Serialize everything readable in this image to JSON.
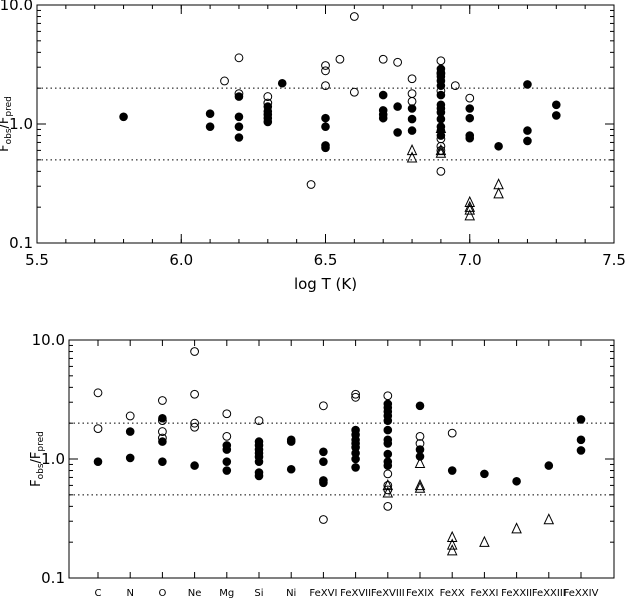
{
  "chart_data": [
    {
      "type": "scatter",
      "xlabel": "log T (K)",
      "ylabel": {
        "main": "F",
        "sub1": "obs",
        "sep": "/F",
        "sub2": "pred"
      },
      "xlim": [
        5.5,
        7.5
      ],
      "ylim": [
        0.1,
        10.0
      ],
      "y_scale": "log",
      "x_ticks": [
        "5.5",
        "6.0",
        "6.5",
        "7.0",
        "7.5"
      ],
      "y_ticks": [
        "0.1",
        "1.0",
        "10.0"
      ],
      "reference_lines": [
        2.0,
        0.5
      ],
      "series": [
        {
          "marker": "filled-circle",
          "points": [
            [
              5.8,
              1.15
            ],
            [
              6.1,
              1.22
            ],
            [
              6.1,
              0.95
            ],
            [
              6.2,
              1.7
            ],
            [
              6.2,
              1.15
            ],
            [
              6.2,
              0.95
            ],
            [
              6.2,
              0.77
            ],
            [
              6.3,
              1.4
            ],
            [
              6.3,
              1.28
            ],
            [
              6.3,
              1.2
            ],
            [
              6.3,
              1.12
            ],
            [
              6.3,
              1.04
            ],
            [
              6.35,
              2.2
            ],
            [
              6.5,
              1.12
            ],
            [
              6.5,
              0.95
            ],
            [
              6.5,
              0.66
            ],
            [
              6.5,
              0.63
            ],
            [
              6.7,
              1.75
            ],
            [
              6.7,
              1.3
            ],
            [
              6.7,
              1.2
            ],
            [
              6.7,
              1.12
            ],
            [
              6.75,
              1.4
            ],
            [
              6.75,
              0.85
            ],
            [
              6.8,
              1.35
            ],
            [
              6.8,
              1.1
            ],
            [
              6.8,
              0.88
            ],
            [
              6.9,
              2.9
            ],
            [
              6.9,
              2.7
            ],
            [
              6.9,
              2.5
            ],
            [
              6.9,
              2.3
            ],
            [
              6.9,
              2.1
            ],
            [
              6.9,
              1.75
            ],
            [
              6.9,
              1.45
            ],
            [
              6.9,
              1.35
            ],
            [
              6.9,
              1.25
            ],
            [
              6.9,
              1.1
            ],
            [
              6.9,
              0.95
            ],
            [
              6.9,
              0.88
            ],
            [
              6.9,
              0.8
            ],
            [
              7.0,
              1.35
            ],
            [
              7.0,
              1.12
            ],
            [
              7.0,
              0.8
            ],
            [
              7.0,
              0.76
            ],
            [
              7.1,
              0.65
            ],
            [
              7.2,
              2.15
            ],
            [
              7.2,
              0.88
            ],
            [
              7.2,
              0.72
            ],
            [
              7.3,
              1.45
            ],
            [
              7.3,
              1.18
            ]
          ]
        },
        {
          "marker": "open-circle",
          "points": [
            [
              6.15,
              2.3
            ],
            [
              6.2,
              3.6
            ],
            [
              6.2,
              1.8
            ],
            [
              6.3,
              1.7
            ],
            [
              6.3,
              1.5
            ],
            [
              6.45,
              0.31
            ],
            [
              6.5,
              3.1
            ],
            [
              6.5,
              2.8
            ],
            [
              6.5,
              2.1
            ],
            [
              6.55,
              3.5
            ],
            [
              6.6,
              8.0
            ],
            [
              6.6,
              1.85
            ],
            [
              6.7,
              3.5
            ],
            [
              6.75,
              3.3
            ],
            [
              6.8,
              2.4
            ],
            [
              6.8,
              1.8
            ],
            [
              6.8,
              1.55
            ],
            [
              6.9,
              3.4
            ],
            [
              6.9,
              2.65
            ],
            [
              6.9,
              1.9
            ],
            [
              6.9,
              0.75
            ],
            [
              6.9,
              0.65
            ],
            [
              6.9,
              0.6
            ],
            [
              6.9,
              0.4
            ],
            [
              6.95,
              2.1
            ],
            [
              7.0,
              1.65
            ]
          ]
        },
        {
          "marker": "open-triangle",
          "points": [
            [
              6.8,
              0.6
            ],
            [
              6.8,
              0.52
            ],
            [
              6.9,
              0.92
            ],
            [
              6.9,
              0.6
            ],
            [
              6.9,
              0.57
            ],
            [
              7.0,
              0.22
            ],
            [
              7.0,
              0.2
            ],
            [
              7.0,
              0.19
            ],
            [
              7.0,
              0.17
            ],
            [
              7.1,
              0.31
            ],
            [
              7.1,
              0.26
            ]
          ]
        }
      ]
    },
    {
      "type": "scatter",
      "xlabel": "",
      "ylabel": {
        "main": "F",
        "sub1": "obs",
        "sep": "/F",
        "sub2": "pred"
      },
      "ylim": [
        0.1,
        10.0
      ],
      "y_scale": "log",
      "y_ticks": [
        "0.1",
        "1.0",
        "10.0"
      ],
      "reference_lines": [
        2.0,
        0.5
      ],
      "categories": [
        "C",
        "N",
        "O",
        "Ne",
        "Mg",
        "Si",
        "Ni",
        "FeXVI",
        "FeXVII",
        "FeXVIII",
        "FeXIX",
        "FeXX",
        "FeXXI",
        "FeXXII",
        "FeXXIII",
        "FeXXIV"
      ],
      "series": [
        {
          "marker": "filled-circle",
          "points": [
            [
              "C",
              0.95
            ],
            [
              "N",
              1.7
            ],
            [
              "N",
              1.02
            ],
            [
              "O",
              2.2
            ],
            [
              "O",
              1.4
            ],
            [
              "O",
              0.95
            ],
            [
              "Ne",
              0.88
            ],
            [
              "Mg",
              1.3
            ],
            [
              "Mg",
              1.2
            ],
            [
              "Mg",
              0.95
            ],
            [
              "Mg",
              0.8
            ],
            [
              "Si",
              1.4
            ],
            [
              "Si",
              1.3
            ],
            [
              "Si",
              1.2
            ],
            [
              "Si",
              1.12
            ],
            [
              "Si",
              1.04
            ],
            [
              "Si",
              0.95
            ],
            [
              "Si",
              0.77
            ],
            [
              "Si",
              0.72
            ],
            [
              "Ni",
              1.45
            ],
            [
              "Ni",
              1.4
            ],
            [
              "Ni",
              0.82
            ],
            [
              "FeXVI",
              1.15
            ],
            [
              "FeXVI",
              0.95
            ],
            [
              "FeXVI",
              0.66
            ],
            [
              "FeXVI",
              0.63
            ],
            [
              "FeXVII",
              1.75
            ],
            [
              "FeXVII",
              1.6
            ],
            [
              "FeXVII",
              1.45
            ],
            [
              "FeXVII",
              1.35
            ],
            [
              "FeXVII",
              1.25
            ],
            [
              "FeXVII",
              1.12
            ],
            [
              "FeXVII",
              1.0
            ],
            [
              "FeXVII",
              0.85
            ],
            [
              "FeXVIII",
              2.9
            ],
            [
              "FeXVIII",
              2.7
            ],
            [
              "FeXVIII",
              2.5
            ],
            [
              "FeXVIII",
              2.3
            ],
            [
              "FeXVIII",
              2.1
            ],
            [
              "FeXVIII",
              1.75
            ],
            [
              "FeXVIII",
              1.45
            ],
            [
              "FeXVIII",
              1.35
            ],
            [
              "FeXVIII",
              1.1
            ],
            [
              "FeXVIII",
              0.95
            ],
            [
              "FeXVIII",
              0.88
            ],
            [
              "FeXIX",
              2.8
            ],
            [
              "FeXIX",
              1.2
            ],
            [
              "FeXIX",
              1.05
            ],
            [
              "FeXX",
              0.8
            ],
            [
              "FeXXI",
              0.75
            ],
            [
              "FeXXII",
              0.65
            ],
            [
              "FeXXIII",
              0.88
            ],
            [
              "FeXXIV",
              2.15
            ],
            [
              "FeXXIV",
              1.45
            ],
            [
              "FeXXIV",
              1.18
            ]
          ]
        },
        {
          "marker": "open-circle",
          "points": [
            [
              "C",
              3.6
            ],
            [
              "C",
              1.8
            ],
            [
              "N",
              2.3
            ],
            [
              "O",
              3.1
            ],
            [
              "O",
              2.1
            ],
            [
              "O",
              1.7
            ],
            [
              "O",
              1.5
            ],
            [
              "Ne",
              8.0
            ],
            [
              "Ne",
              3.5
            ],
            [
              "Ne",
              2.0
            ],
            [
              "Ne",
              1.85
            ],
            [
              "Mg",
              2.4
            ],
            [
              "Mg",
              1.55
            ],
            [
              "Si",
              2.1
            ],
            [
              "FeXVI",
              2.8
            ],
            [
              "FeXVI",
              0.31
            ],
            [
              "FeXVII",
              3.5
            ],
            [
              "FeXVII",
              3.3
            ],
            [
              "FeXVIII",
              3.4
            ],
            [
              "FeXVIII",
              0.75
            ],
            [
              "FeXVIII",
              0.6
            ],
            [
              "FeXVIII",
              0.55
            ],
            [
              "FeXVIII",
              0.4
            ],
            [
              "FeXIX",
              1.55
            ],
            [
              "FeXIX",
              1.35
            ],
            [
              "FeXX",
              1.65
            ]
          ]
        },
        {
          "marker": "open-triangle",
          "points": [
            [
              "FeXVIII",
              0.6
            ],
            [
              "FeXVIII",
              0.52
            ],
            [
              "FeXIX",
              0.92
            ],
            [
              "FeXIX",
              0.6
            ],
            [
              "FeXIX",
              0.57
            ],
            [
              "FeXX",
              0.22
            ],
            [
              "FeXX",
              0.19
            ],
            [
              "FeXX",
              0.17
            ],
            [
              "FeXXI",
              0.2
            ],
            [
              "FeXXII",
              0.26
            ],
            [
              "FeXXIII",
              0.31
            ]
          ]
        }
      ]
    }
  ]
}
